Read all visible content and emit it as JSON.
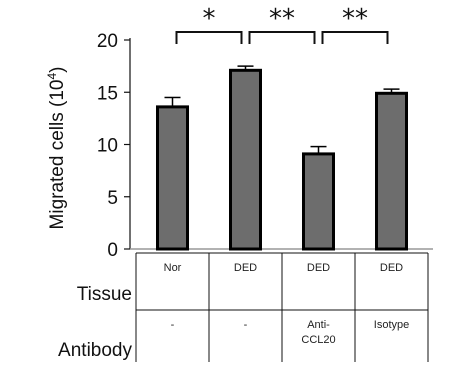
{
  "chart_data": {
    "type": "bar",
    "categories": [
      "Nor",
      "DED",
      "DED",
      "DED"
    ],
    "values": [
      13.6,
      17.1,
      9.1,
      14.9
    ],
    "errors": [
      0.9,
      0.4,
      0.7,
      0.4
    ],
    "ylabel": "Migrated cells (10",
    "ylabel_sup": "4",
    "ylabel_close": ")",
    "ylim": [
      0,
      20
    ],
    "yticks": [
      "0",
      "5",
      "10",
      "15",
      "20"
    ],
    "bar_color": "#6d6d6d",
    "significance": [
      {
        "from": 0,
        "to": 1,
        "label": "*"
      },
      {
        "from": 1,
        "to": 2,
        "label": "**"
      },
      {
        "from": 2,
        "to": 3,
        "label": "**"
      }
    ],
    "table": {
      "rows": [
        {
          "label": "Tissue",
          "cells": [
            "Nor",
            "DED",
            "DED",
            "DED"
          ]
        },
        {
          "label": "Antibody",
          "cells": [
            "-",
            "-",
            "Anti-\nCCL20",
            "Isotype"
          ]
        }
      ]
    }
  }
}
